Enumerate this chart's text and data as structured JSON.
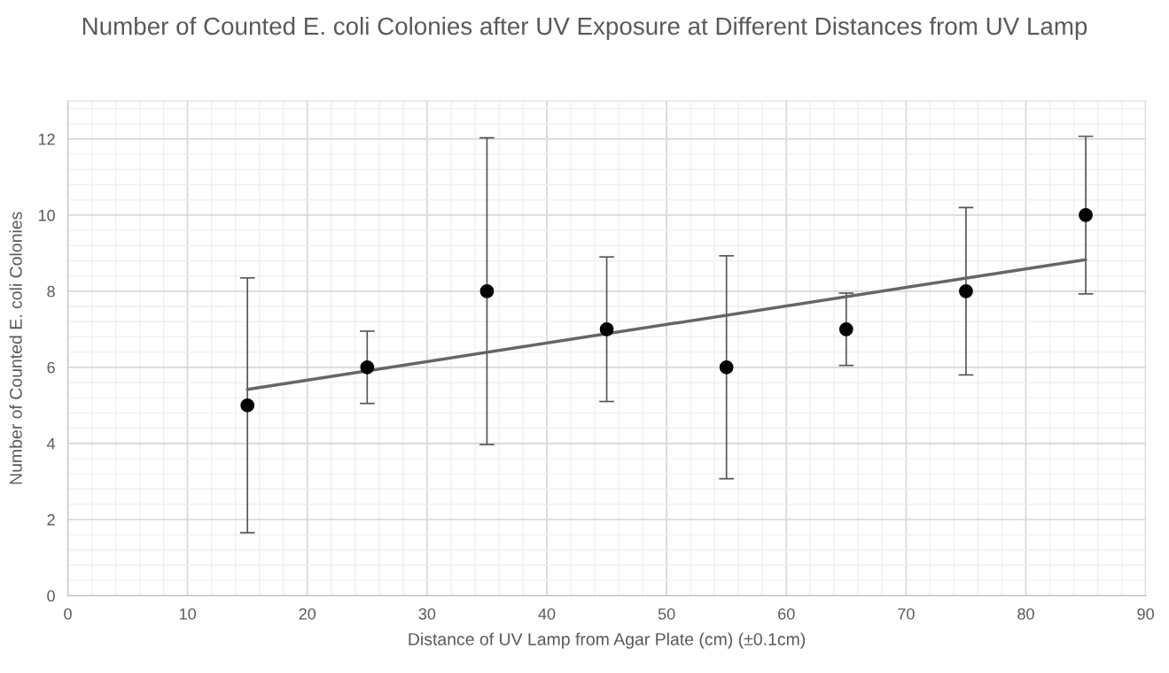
{
  "chart_data": {
    "type": "scatter",
    "title": "Number of Counted E. coli Colonies after UV Exposure at Different Distances from UV Lamp",
    "xlabel": "Distance of UV Lamp from Agar Plate (cm) (±0.1cm)",
    "ylabel": "Number of Counted E. coli Colonies",
    "x": [
      15,
      25,
      35,
      45,
      55,
      65,
      75,
      85
    ],
    "series": [
      {
        "color": "#000000",
        "values": [
          5,
          6,
          8,
          7,
          6,
          7,
          8,
          10
        ],
        "errors": [
          3.35,
          0.95,
          4.03,
          1.9,
          2.93,
          0.95,
          2.2,
          2.07
        ],
        "marker": "circle"
      },
      {
        "type": "line",
        "color": "#666666",
        "x": [
          15,
          85
        ],
        "values": [
          5.42,
          8.83
        ],
        "line_style": "solid"
      }
    ],
    "xlim": [
      0,
      90
    ],
    "xticks": [
      0,
      10,
      20,
      30,
      40,
      50,
      60,
      70,
      80,
      90
    ],
    "ylim": [
      0,
      13
    ],
    "yticks": [
      0,
      2,
      4,
      6,
      8,
      10,
      12
    ],
    "grid": true,
    "legend": false
  }
}
